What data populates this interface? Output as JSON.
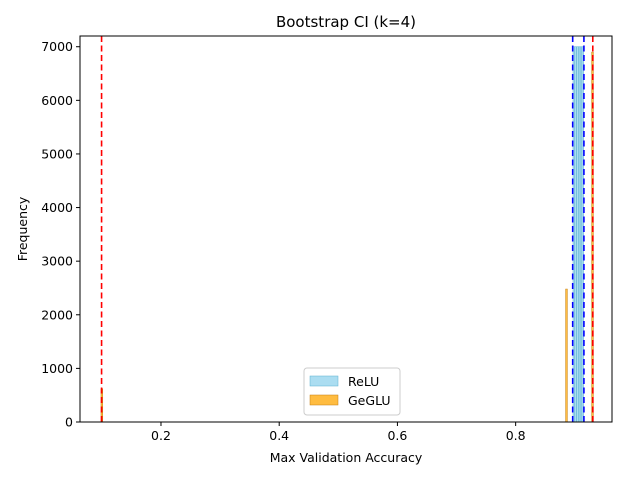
{
  "chart_data": {
    "type": "histogram",
    "title": "Bootstrap CI (k=4)",
    "xlabel": "Max Validation Accuracy",
    "ylabel": "Frequency",
    "xlim": [
      0.063,
      0.963
    ],
    "ylim": [
      0,
      7200
    ],
    "xticks": [
      0.2,
      0.4,
      0.6,
      0.8
    ],
    "yticks": [
      0,
      1000,
      2000,
      3000,
      4000,
      5000,
      6000,
      7000
    ],
    "grid": false,
    "legend": {
      "placement": "lower-center"
    },
    "series": [
      {
        "name": "ReLU",
        "color": "#87ceeb",
        "bins": [
          {
            "x0": 0.897,
            "x1": 0.9,
            "count": 7000
          },
          {
            "x0": 0.9,
            "x1": 0.903,
            "count": 7000
          },
          {
            "x0": 0.903,
            "x1": 0.906,
            "count": 7000
          },
          {
            "x0": 0.906,
            "x1": 0.909,
            "count": 7000
          },
          {
            "x0": 0.909,
            "x1": 0.912,
            "count": 7000
          },
          {
            "x0": 0.912,
            "x1": 0.915,
            "count": 7000
          }
        ],
        "ci_lines": [
          0.8965,
          0.9155
        ],
        "ci_color": "#0000ff"
      },
      {
        "name": "GeGLU",
        "color": "#ffa500",
        "bins": [
          {
            "x0": 0.0985,
            "x1": 0.1015,
            "count": 620
          },
          {
            "x0": 0.8845,
            "x1": 0.8875,
            "count": 2480
          },
          {
            "x0": 0.9285,
            "x1": 0.9315,
            "count": 6900
          }
        ],
        "ci_lines": [
          0.0995,
          0.9305
        ],
        "ci_color": "#ff0000"
      }
    ]
  }
}
